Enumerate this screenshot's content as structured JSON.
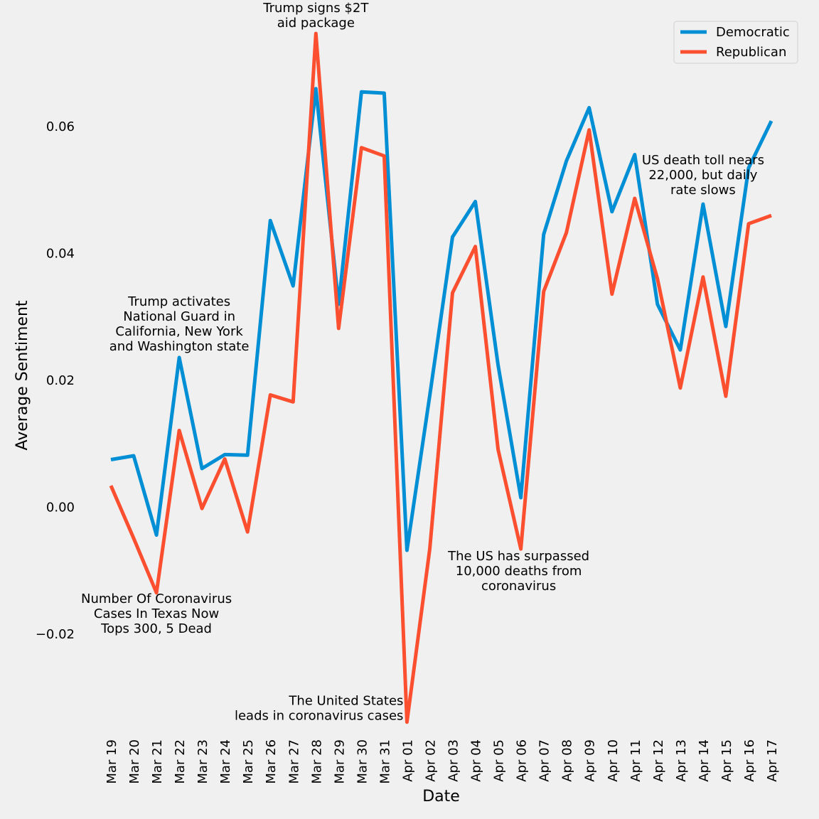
{
  "chart_data": {
    "type": "line",
    "title": "",
    "xlabel": "Date",
    "ylabel": "Average Sentiment",
    "categories": [
      "Mar 19",
      "Mar 20",
      "Mar 21",
      "Mar 22",
      "Mar 23",
      "Mar 24",
      "Mar 25",
      "Mar 26",
      "Mar 27",
      "Mar 28",
      "Mar 29",
      "Mar 30",
      "Mar 31",
      "Apr 01",
      "Apr 02",
      "Apr 03",
      "Apr 04",
      "Apr 05",
      "Apr 06",
      "Apr 07",
      "Apr 08",
      "Apr 09",
      "Apr 10",
      "Apr 11",
      "Apr 12",
      "Apr 13",
      "Apr 14",
      "Apr 15",
      "Apr 16",
      "Apr 17"
    ],
    "ylim": [
      -0.0355,
      0.0755
    ],
    "yticks": [
      -0.02,
      0.0,
      0.02,
      0.04,
      0.06
    ],
    "ytick_labels": [
      "−0.02",
      "0.00",
      "0.02",
      "0.04",
      "0.06"
    ],
    "grid": false,
    "legend_position": "top-right",
    "series": [
      {
        "name": "Democratic",
        "color": "#008fd5",
        "values": [
          0.0075,
          0.0081,
          -0.0044,
          0.0236,
          0.0061,
          0.0083,
          0.0082,
          0.0452,
          0.0349,
          0.066,
          0.032,
          0.0655,
          0.0653,
          -0.0068,
          0.0176,
          0.0426,
          0.0482,
          0.0224,
          0.0015,
          0.043,
          0.0546,
          0.063,
          0.0466,
          0.0556,
          0.032,
          0.0248,
          0.0478,
          0.0285,
          0.0535,
          0.0609
        ]
      },
      {
        "name": "Republican",
        "color": "#fc4f30",
        "values": [
          0.0034,
          -0.0049,
          -0.0135,
          0.0121,
          -0.0002,
          0.0076,
          -0.0039,
          0.0177,
          0.0166,
          0.0747,
          0.0282,
          0.0567,
          0.0554,
          -0.0339,
          -0.0066,
          0.0338,
          0.0411,
          0.0091,
          -0.0066,
          0.034,
          0.0433,
          0.0595,
          0.0336,
          0.0487,
          0.036,
          0.0188,
          0.0363,
          0.0175,
          0.0447,
          0.046
        ]
      }
    ],
    "annotations": [
      {
        "lines": [
          "Trump signs $2T",
          "aid package"
        ],
        "x": "Mar 28",
        "y": 0.0747,
        "anchor": "middle"
      },
      {
        "lines": [
          "Trump activates",
          "National Guard in",
          "California, New York",
          "and Washington state"
        ],
        "x": "Mar 22",
        "y": 0.0236,
        "anchor": "middle"
      },
      {
        "lines": [
          "Number Of Coronavirus",
          "Cases In Texas Now",
          "Tops 300, 5 Dead"
        ],
        "x": "Mar 21",
        "y": -0.0135,
        "anchor": "middle"
      },
      {
        "lines": [
          "The United States",
          "leads in coronavirus cases"
        ],
        "x": "Apr 01",
        "y": -0.0339,
        "anchor": "end"
      },
      {
        "lines": [
          "The US has surpassed",
          "10,000 deaths from",
          "coronavirus"
        ],
        "x": "Apr 06",
        "y": -0.0066,
        "anchor": "middle"
      },
      {
        "lines": [
          "US death toll nears",
          "22,000, but daily",
          "rate slows"
        ],
        "x": "Apr 14",
        "y": 0.0478,
        "anchor": "middle"
      }
    ]
  }
}
